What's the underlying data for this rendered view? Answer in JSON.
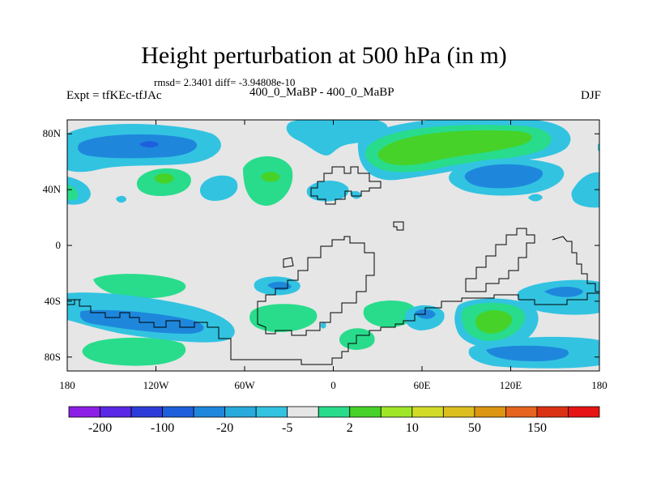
{
  "figure": {
    "title": "Height perturbation at 500 hPa (in m)",
    "stats": "rmsd= 2.3401 diff= -3.94808e-10",
    "left_label": "Expt = tfKEc-tfJAc",
    "center_label": "400_0_MaBP - 400_0_MaBP",
    "right_label": "DJF"
  },
  "axes": {
    "lon_range": [
      -180,
      180
    ],
    "lat_range": [
      -90,
      90
    ],
    "lon_ticks": [
      {
        "value": -180,
        "label": "180"
      },
      {
        "value": -120,
        "label": "120W"
      },
      {
        "value": -60,
        "label": "60W"
      },
      {
        "value": 0,
        "label": "0"
      },
      {
        "value": 60,
        "label": "60E"
      },
      {
        "value": 120,
        "label": "120E"
      },
      {
        "value": 180,
        "label": "180"
      }
    ],
    "lat_ticks": [
      {
        "value": 80,
        "label": "80N"
      },
      {
        "value": 40,
        "label": "40N"
      },
      {
        "value": 0,
        "label": "0"
      },
      {
        "value": -40,
        "label": "40S"
      },
      {
        "value": -80,
        "label": "80S"
      }
    ]
  },
  "colorbar": {
    "colors": [
      "#8c1ee6",
      "#5a28e6",
      "#2d3cd9",
      "#1e5fdc",
      "#1e87dc",
      "#28aadc",
      "#32c3e1",
      "#e6e6e6",
      "#28dc8c",
      "#46d228",
      "#a0e628",
      "#d2dc28",
      "#dcbe1e",
      "#dc9614",
      "#e6641e",
      "#dc3214",
      "#e61414"
    ],
    "labels": [
      {
        "text": "-200",
        "boundary": 1
      },
      {
        "text": "-100",
        "boundary": 3
      },
      {
        "text": "-20",
        "boundary": 5
      },
      {
        "text": "-5",
        "boundary": 7
      },
      {
        "text": "2",
        "boundary": 9
      },
      {
        "text": "10",
        "boundary": 11
      },
      {
        "text": "50",
        "boundary": 13
      },
      {
        "text": "150",
        "boundary": 15
      }
    ]
  },
  "field_colors": {
    "background": "#e6e6e6",
    "light_blue": "#32c3e1",
    "blue": "#1e87dc",
    "dark_blue": "#1e5fdc",
    "green": "#28dc8c",
    "bright_green": "#46d228"
  }
}
